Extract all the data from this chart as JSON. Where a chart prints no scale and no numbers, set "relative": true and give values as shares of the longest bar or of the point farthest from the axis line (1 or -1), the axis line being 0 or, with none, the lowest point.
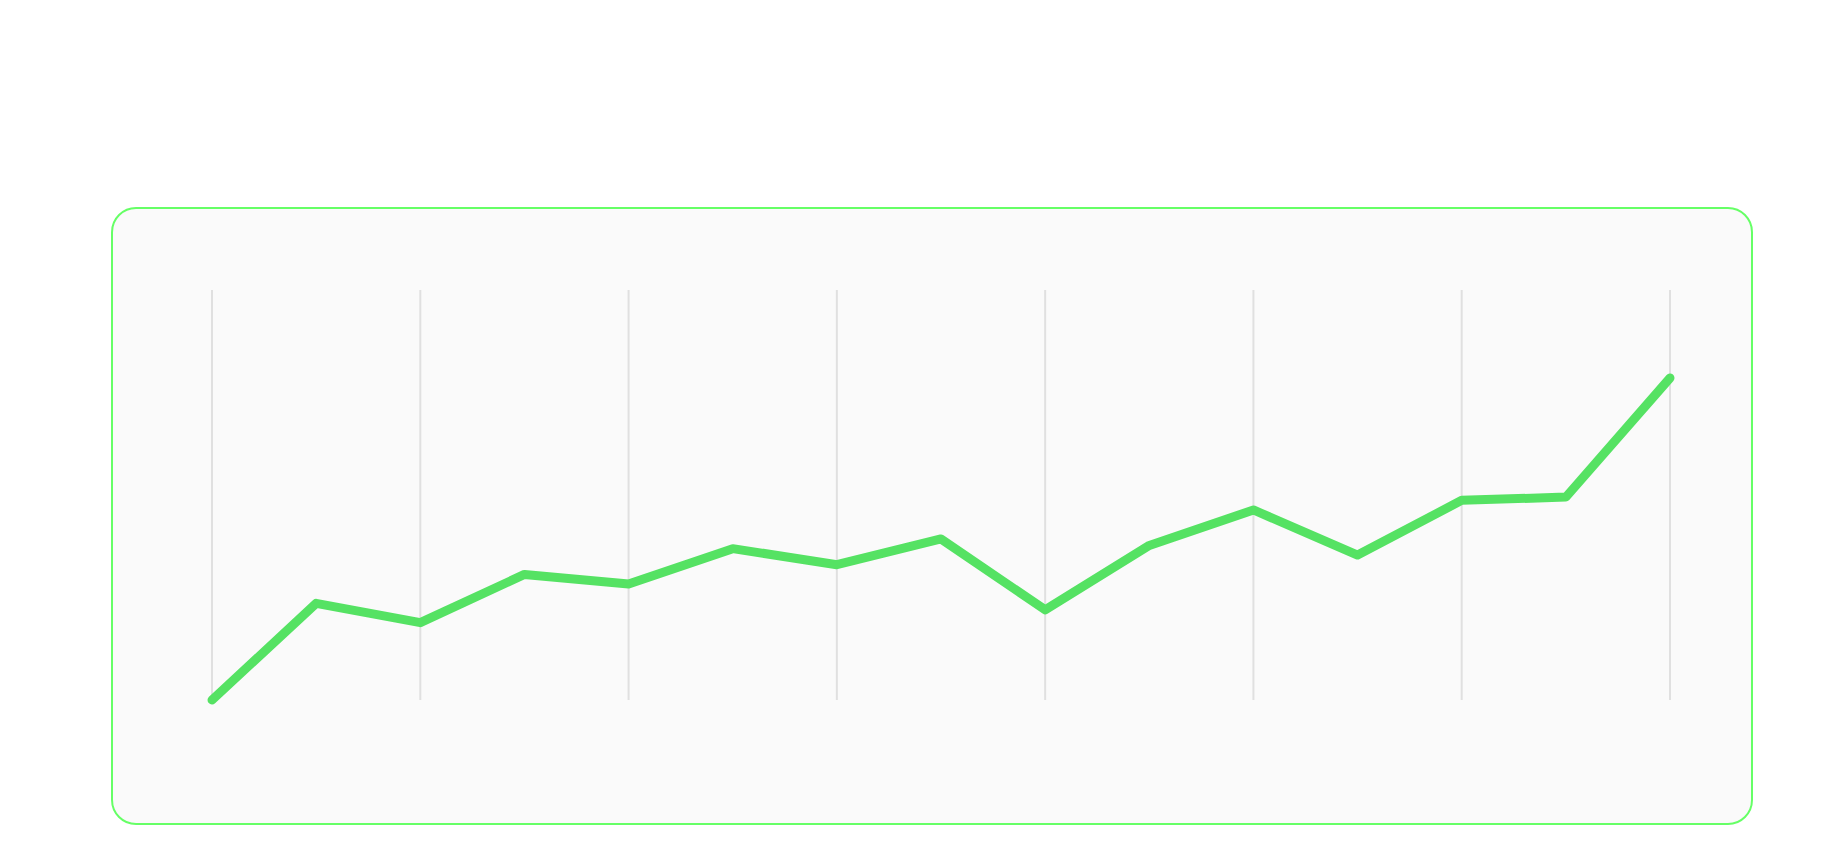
{
  "chart_data": {
    "type": "line",
    "relative": true,
    "categories": [
      null,
      null,
      null,
      null,
      null,
      null,
      null,
      null,
      null,
      null,
      null,
      null,
      null,
      null,
      null
    ],
    "grid": "x",
    "series": [
      {
        "color": "#55e263",
        "values": [
          0,
          0.3,
          0.24,
          0.39,
          0.36,
          0.47,
          0.42,
          0.5,
          0.28,
          0.48,
          0.59,
          0.45,
          0.62,
          0.63,
          1
        ]
      }
    ]
  }
}
